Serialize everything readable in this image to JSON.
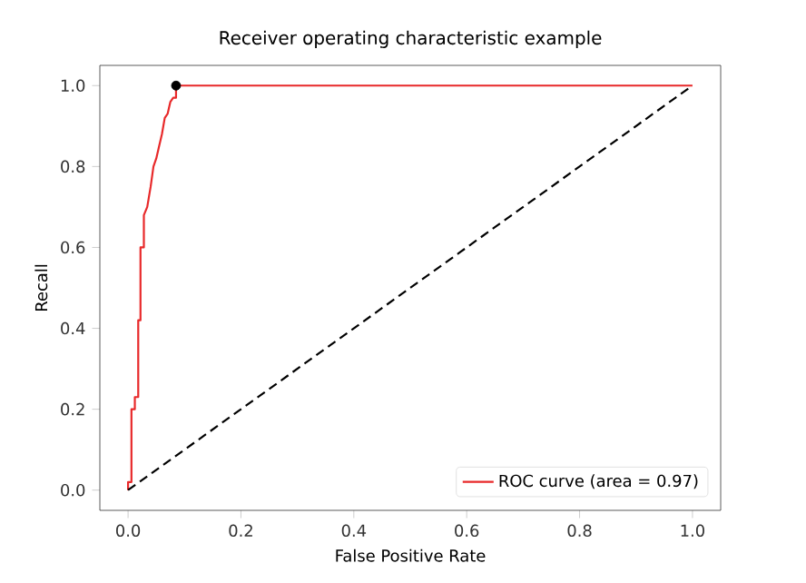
{
  "chart_data": {
    "type": "line",
    "title": "Receiver operating characteristic example",
    "xlabel": "False Positive Rate",
    "ylabel": "Recall",
    "xlim": [
      -0.05,
      1.05
    ],
    "ylim": [
      -0.05,
      1.05
    ],
    "xticks": [
      {
        "value": 0,
        "label": "0.0"
      },
      0.2,
      0.4,
      0.6,
      0.8,
      {
        "value": 1,
        "label": "1.0"
      }
    ],
    "yticks": [
      {
        "value": 0,
        "label": "0.0"
      },
      0.2,
      0.4,
      0.6,
      0.8,
      {
        "value": 1,
        "label": "1.0"
      }
    ],
    "legend": "bottom right",
    "grid": false,
    "series": [
      {
        "name": "ROC curve (area = 0.97)",
        "color": "#e8292a",
        "line_style": "solid",
        "x": [
          0,
          0,
          0.006,
          0.006,
          0.012,
          0.012,
          0.018,
          0.018,
          0.022,
          0.022,
          0.028,
          0.028,
          0.034,
          0.04,
          0.045,
          0.05,
          0.055,
          0.06,
          0.065,
          0.07,
          0.075,
          0.08,
          0.085,
          0.085,
          1.0
        ],
        "values": [
          0,
          0.02,
          0.02,
          0.2,
          0.2,
          0.23,
          0.23,
          0.42,
          0.42,
          0.6,
          0.6,
          0.68,
          0.7,
          0.75,
          0.8,
          0.82,
          0.85,
          0.88,
          0.92,
          0.93,
          0.96,
          0.97,
          0.97,
          1.0,
          1.0
        ]
      },
      {
        "color": "#000000",
        "line_style": "dashed",
        "x": [
          0,
          1
        ],
        "values": [
          0,
          1
        ]
      },
      {
        "type": "scatter",
        "color": "#000000",
        "marker": "circle",
        "x": [
          0.085
        ],
        "values": [
          1.0
        ]
      }
    ]
  }
}
